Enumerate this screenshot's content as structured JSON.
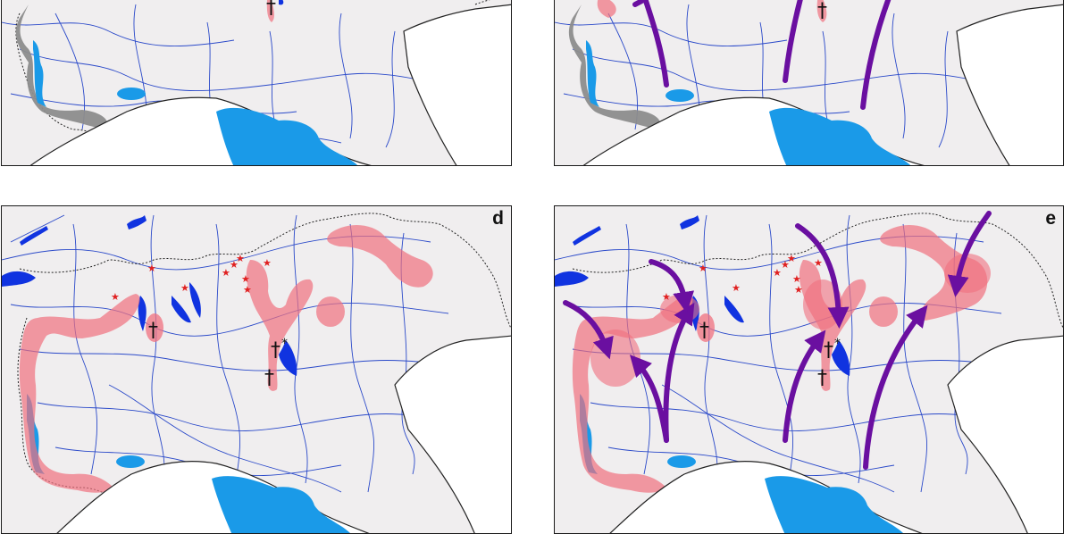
{
  "figure": {
    "panels": [
      {
        "id": "top-left",
        "label": ""
      },
      {
        "id": "top-right",
        "label": ""
      },
      {
        "id": "d",
        "label": "d"
      },
      {
        "id": "e",
        "label": "e"
      }
    ],
    "symbols": {
      "cross": "†",
      "asterisk": "*"
    },
    "colors": {
      "background": "#f0eeef",
      "coast_line": "#222222",
      "river": "#2a49c9",
      "lake_dark": "#1033e0",
      "lake_light": "#1a9ae8",
      "sea_blue_area": "#1a9ae8",
      "range_pink": "#f0707f",
      "range_gray": "#8c8c8c",
      "arrow_purple": "#6a0fa0",
      "star_red": "#e02020"
    }
  }
}
